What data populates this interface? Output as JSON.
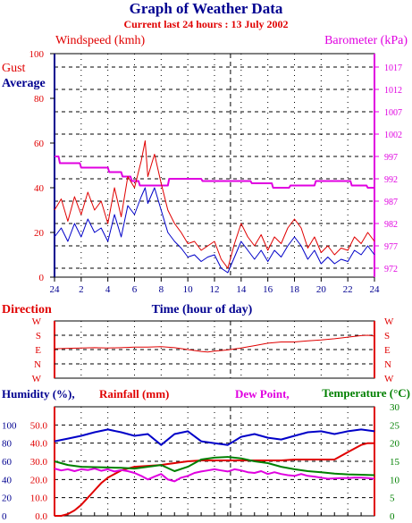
{
  "header": {
    "title": "Graph of Weather Data",
    "subtitle": "Current last 24 hours : 13 July 2002"
  },
  "colors": {
    "red": "#e00000",
    "blue": "#0000c8",
    "magenta": "#e000e0",
    "green": "#008000",
    "navy": "#000090"
  },
  "chart_data": [
    {
      "type": "line",
      "name": "wind-barometer",
      "xlabel": "Time (hour of day)",
      "x_ticks": [
        "24",
        "2",
        "4",
        "6",
        "8",
        "10",
        "12",
        "14",
        "16",
        "18",
        "20",
        "22",
        "24"
      ],
      "left_axis": {
        "label": "Windspeed (kmh)",
        "ticks": [
          "0",
          "20",
          "40",
          "60",
          "80",
          "100"
        ],
        "ylim": [
          0,
          100
        ]
      },
      "right_axis": {
        "label": "Barometer (kPa)",
        "ticks": [
          "972",
          "977",
          "982",
          "987",
          "992",
          "997",
          "1002",
          "1007",
          "1012",
          "1017"
        ],
        "ylim": [
          970,
          1020
        ]
      },
      "series_labels": {
        "gust": "Gust",
        "average": "Average"
      },
      "now_hour": 13.2,
      "series": [
        {
          "name": "Gust",
          "axis": "left",
          "x": [
            0,
            0.5,
            1,
            1.5,
            2,
            2.5,
            3,
            3.5,
            4,
            4.5,
            5,
            5.5,
            6,
            6.5,
            6.8,
            7,
            7.5,
            8,
            8.5,
            9,
            9.5,
            10,
            10.5,
            11,
            11.5,
            12,
            12.5,
            13,
            13.5,
            14,
            14.5,
            15,
            15.5,
            16,
            16.5,
            17,
            17.5,
            18,
            18.5,
            19,
            19.5,
            20,
            20.5,
            21,
            21.5,
            22,
            22.5,
            23,
            23.5,
            24
          ],
          "values": [
            30,
            35,
            25,
            36,
            28,
            38,
            30,
            34,
            24,
            40,
            27,
            45,
            40,
            52,
            61,
            45,
            55,
            42,
            30,
            24,
            20,
            15,
            16,
            12,
            14,
            16,
            8,
            4,
            15,
            24,
            18,
            14,
            19,
            12,
            18,
            15,
            22,
            26,
            22,
            13,
            18,
            11,
            14,
            10,
            13,
            12,
            18,
            15,
            20,
            16
          ]
        },
        {
          "name": "Average",
          "axis": "left",
          "x": [
            0,
            0.5,
            1,
            1.5,
            2,
            2.5,
            3,
            3.5,
            4,
            4.5,
            5,
            5.5,
            6,
            6.5,
            6.8,
            7,
            7.5,
            8,
            8.5,
            9,
            9.5,
            10,
            10.5,
            11,
            11.5,
            12,
            12.5,
            13,
            13.5,
            14,
            14.5,
            15,
            15.5,
            16,
            16.5,
            17,
            17.5,
            18,
            18.5,
            19,
            19.5,
            20,
            20.5,
            21,
            21.5,
            22,
            22.5,
            23,
            23.5,
            24
          ],
          "values": [
            18,
            22,
            16,
            24,
            18,
            26,
            20,
            22,
            16,
            28,
            18,
            32,
            28,
            36,
            40,
            33,
            40,
            30,
            20,
            16,
            13,
            9,
            10,
            7,
            9,
            10,
            4,
            2,
            9,
            16,
            12,
            8,
            12,
            7,
            12,
            9,
            14,
            18,
            14,
            8,
            12,
            6,
            9,
            6,
            8,
            7,
            12,
            10,
            14,
            10
          ]
        },
        {
          "name": "Barometer",
          "axis": "right",
          "x": [
            0,
            0.3,
            0.4,
            1.9,
            2.0,
            4.0,
            4.1,
            5.0,
            5.1,
            5.7,
            5.8,
            6.3,
            6.4,
            8.5,
            8.6,
            11.0,
            11.1,
            14.7,
            14.8,
            16.3,
            16.4,
            17.6,
            17.7,
            19.5,
            19.6,
            22.2,
            22.3,
            23.4,
            23.5,
            24
          ],
          "values": [
            997,
            997,
            995.5,
            995.5,
            994.5,
            994.5,
            993.5,
            993.5,
            992.5,
            992.5,
            991.5,
            991.5,
            990.5,
            990.5,
            992,
            992,
            991.5,
            991.5,
            991,
            991,
            990,
            990,
            990.5,
            990.5,
            991.5,
            991.5,
            990.5,
            990.5,
            990,
            990
          ]
        }
      ]
    },
    {
      "type": "line",
      "name": "direction",
      "ylabel": "Direction",
      "y_ticks": [
        "W",
        "S",
        "E",
        "N",
        "W"
      ],
      "ylim": [
        0,
        360
      ],
      "series": [
        {
          "name": "Direction",
          "x": [
            0,
            1,
            2,
            3,
            4,
            5,
            6,
            7,
            8,
            9,
            10,
            11,
            11.5,
            12,
            13,
            14,
            15,
            16,
            17,
            18,
            19,
            20,
            21,
            22,
            23,
            23.5,
            24
          ],
          "values": [
            185,
            188,
            190,
            192,
            190,
            192,
            195,
            196,
            198,
            192,
            180,
            168,
            165,
            170,
            178,
            190,
            205,
            220,
            228,
            228,
            235,
            240,
            248,
            258,
            268,
            270,
            265
          ]
        }
      ]
    },
    {
      "type": "line",
      "name": "humidity-rain-dew-temperature",
      "labels": {
        "humidity": "Humidity (%),",
        "rainfall": "Rainfall (mm)",
        "dew_point": "Dew Point,",
        "temperature": "Temperature (°C)"
      },
      "left_outer_ticks": [
        "0",
        "20",
        "40",
        "60",
        "80",
        "100"
      ],
      "left_inner_ticks": [
        "0.0",
        "10.0",
        "20.0",
        "30.0",
        "40.0",
        "50.0"
      ],
      "right_ticks": [
        "0",
        "5",
        "10",
        "15",
        "20",
        "25",
        "30"
      ],
      "series": [
        {
          "name": "Humidity",
          "axis": "humidity",
          "ylim": [
            0,
            120
          ],
          "x": [
            0,
            1,
            2,
            3,
            4,
            5,
            6,
            7,
            8,
            9,
            10,
            11,
            12,
            13,
            14,
            15,
            16,
            17,
            18,
            19,
            20,
            21,
            22,
            23,
            24
          ],
          "values": [
            82,
            85,
            88,
            92,
            95,
            92,
            88,
            90,
            78,
            90,
            93,
            82,
            80,
            78,
            87,
            90,
            86,
            84,
            88,
            92,
            93,
            90,
            93,
            95,
            93
          ]
        },
        {
          "name": "Rainfall",
          "axis": "rainfall",
          "ylim": [
            0,
            60
          ],
          "x": [
            0,
            0.5,
            1,
            1.5,
            2,
            2.5,
            3,
            3.5,
            4,
            4.5,
            5,
            5.5,
            6,
            7,
            8,
            8.5,
            9,
            10,
            11,
            12,
            13,
            14,
            15,
            16,
            17,
            18,
            19,
            20,
            21,
            21.5,
            22,
            22.5,
            23,
            23.5,
            24
          ],
          "values": [
            0,
            0,
            1,
            3,
            6,
            10,
            14,
            18,
            21,
            23,
            25,
            26,
            27,
            27.5,
            28,
            28.5,
            29,
            30,
            30.5,
            30.5,
            30.5,
            30.5,
            30.5,
            30.5,
            30.5,
            31,
            31,
            31,
            31,
            33,
            35,
            37,
            39,
            40,
            40
          ]
        },
        {
          "name": "Dew Point",
          "axis": "temperature",
          "ylim": [
            0,
            30
          ],
          "x": [
            0,
            0.5,
            1,
            1.5,
            2,
            2.5,
            3,
            3.5,
            4,
            4.5,
            5,
            5.5,
            6,
            6.5,
            7,
            7.5,
            8,
            8.5,
            9,
            9.5,
            10,
            10.5,
            11,
            11.5,
            12,
            12.5,
            13,
            13.5,
            14,
            14.5,
            15,
            15.5,
            16,
            16.5,
            17,
            17.5,
            18,
            18.5,
            19,
            19.5,
            20,
            20.5,
            21,
            21.5,
            22,
            22.5,
            23,
            23.5,
            24
          ],
          "values": [
            13,
            12.5,
            12.8,
            12.3,
            12.8,
            12.6,
            13,
            12.4,
            12.8,
            12.2,
            12.6,
            12.3,
            11.8,
            11,
            10,
            10.8,
            11.5,
            10,
            9.5,
            10.5,
            11,
            11.8,
            12.2,
            12.5,
            12.8,
            12.5,
            12.2,
            12.8,
            12.5,
            12,
            11.8,
            12.3,
            11.5,
            12,
            11.5,
            11.2,
            11,
            11.5,
            11,
            10.8,
            10.5,
            10.2,
            10.3,
            10.4,
            10.4,
            10.5,
            10.5,
            10.4,
            10.2
          ]
        },
        {
          "name": "Temperature",
          "axis": "temperature",
          "ylim": [
            0,
            30
          ],
          "x": [
            0,
            1,
            2,
            3,
            4,
            5,
            6,
            7,
            8,
            9,
            10,
            11,
            12,
            13,
            14,
            15,
            16,
            17,
            18,
            19,
            20,
            21,
            22,
            23,
            24
          ],
          "values": [
            15,
            14,
            13.5,
            13.4,
            13.3,
            13.2,
            13,
            13.5,
            14,
            12.3,
            13.5,
            15.5,
            16,
            16.2,
            15.8,
            15,
            14.5,
            13.5,
            12.8,
            12.3,
            12,
            11.6,
            11.4,
            11.3,
            11.2
          ]
        }
      ]
    }
  ]
}
